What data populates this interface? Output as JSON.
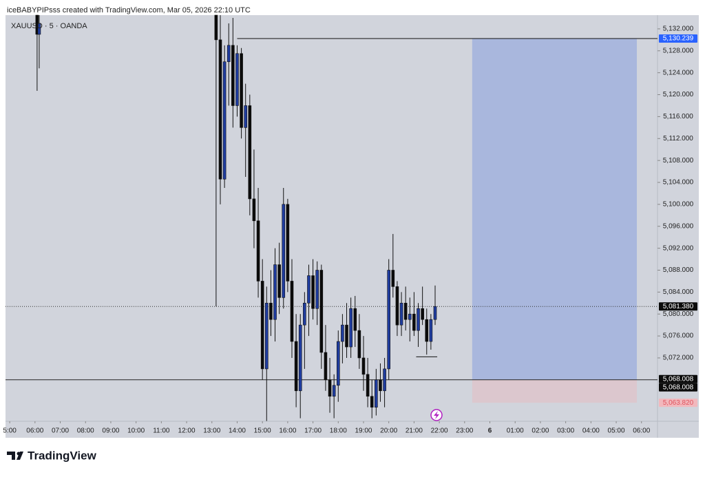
{
  "header": {
    "credit": "iceBABYPIPsss created with TradingView.com, Mar 05, 2026 22:10 UTC",
    "brand": "TradingView"
  },
  "chart_data": {
    "type": "candlestick",
    "title": "XAUUSD · 5 · OANDA",
    "x": [
      365,
      370,
      790,
      800,
      810,
      820,
      830,
      840,
      850,
      860,
      870,
      880,
      890,
      900,
      910,
      920,
      930,
      940,
      950,
      960,
      970,
      980,
      990,
      1000,
      1010,
      1020,
      1030,
      1040,
      1050,
      1060,
      1070,
      1080,
      1090,
      1100,
      1110,
      1120,
      1130,
      1140,
      1150,
      1160,
      1170,
      1180,
      1190,
      1200,
      1210,
      1220,
      1230,
      1240,
      1250,
      1260,
      1270,
      1280,
      1290,
      1300,
      1310
    ],
    "open": [
      5134.5,
      5131,
      5134.5,
      5130,
      5104.6,
      5126,
      5129,
      5118,
      5127.5,
      5114,
      5118,
      5101,
      5097,
      5086,
      5070,
      5082,
      5079,
      5089,
      5083,
      5100,
      5086,
      5075,
      5066,
      5078,
      5082,
      5087,
      5081,
      5088,
      5073,
      5068,
      5065,
      5067,
      5075,
      5078,
      5074,
      5081,
      5077,
      5072,
      5069,
      5065,
      5063,
      5068,
      5066,
      5070,
      5088,
      5085,
      5078,
      5082,
      5079,
      5080,
      5077,
      5081,
      5079,
      5075,
      5079
    ],
    "high": [
      5134.5,
      5134.5,
      5134.5,
      5134.5,
      5129,
      5133,
      5134,
      5129,
      5128.5,
      5122,
      5120,
      5110,
      5103,
      5090,
      5085,
      5088,
      5092,
      5093,
      5103,
      5101,
      5090,
      5080,
      5080,
      5084,
      5089,
      5090,
      5089.6,
      5089,
      5078,
      5072,
      5069,
      5077,
      5080,
      5082,
      5083,
      5083.3,
      5080,
      5076,
      5072,
      5068,
      5070,
      5071,
      5072,
      5090,
      5094.6,
      5086,
      5084,
      5085,
      5083,
      5084,
      5082,
      5085,
      5081,
      5080,
      5085.2
    ],
    "low": [
      5120.7,
      5124.8,
      5081.4,
      5100,
      5103,
      5118,
      5114,
      5116,
      5112,
      5105,
      5098,
      5092,
      5083,
      5068,
      5060.5,
      5076,
      5075,
      5080,
      5081,
      5084,
      5072,
      5063,
      5061,
      5070,
      5076,
      5079,
      5078,
      5070,
      5066,
      5062,
      5061,
      5064,
      5071,
      5072,
      5072,
      5074,
      5070,
      5066,
      5063,
      5061,
      5061.5,
      5064,
      5063,
      5068,
      5083,
      5076,
      5076,
      5077,
      5075,
      5076,
      5074,
      5078,
      5072.6,
      5073.5,
      5078
    ],
    "close": [
      5131,
      5133,
      5130,
      5104.6,
      5126,
      5129,
      5118,
      5127.5,
      5114,
      5118,
      5101,
      5097,
      5086,
      5070,
      5082,
      5079,
      5089,
      5083,
      5100,
      5086,
      5075,
      5066,
      5078,
      5082,
      5087,
      5081,
      5088,
      5073,
      5068,
      5065,
      5067,
      5075,
      5078,
      5074,
      5081,
      5077,
      5072,
      5069,
      5065,
      5063,
      5068,
      5066,
      5070,
      5088,
      5085,
      5078,
      5082,
      5079,
      5080,
      5077,
      5081,
      5079,
      5075,
      5079,
      5081.38
    ],
    "up_color": "#1f3c9e",
    "down_color": "#0b0b0b",
    "xlim": [
      290,
      1838
    ],
    "ylim": [
      5060.45,
      5134.5
    ],
    "xticks": [
      {
        "value": 300,
        "label": "5:00"
      },
      {
        "value": 360,
        "label": "06:00"
      },
      {
        "value": 420,
        "label": "07:00"
      },
      {
        "value": 480,
        "label": "08:00"
      },
      {
        "value": 540,
        "label": "09:00"
      },
      {
        "value": 600,
        "label": "10:00"
      },
      {
        "value": 660,
        "label": "11:00"
      },
      {
        "value": 720,
        "label": "12:00"
      },
      {
        "value": 780,
        "label": "13:00"
      },
      {
        "value": 840,
        "label": "14:00"
      },
      {
        "value": 900,
        "label": "15:00"
      },
      {
        "value": 960,
        "label": "16:00"
      },
      {
        "value": 1020,
        "label": "17:00"
      },
      {
        "value": 1080,
        "label": "18:00"
      },
      {
        "value": 1140,
        "label": "19:00"
      },
      {
        "value": 1200,
        "label": "20:00"
      },
      {
        "value": 1260,
        "label": "21:00"
      },
      {
        "value": 1320,
        "label": "22:00"
      },
      {
        "value": 1380,
        "label": "23:00"
      },
      {
        "value": 1440,
        "label": "6"
      },
      {
        "value": 1500,
        "label": "01:00"
      },
      {
        "value": 1560,
        "label": "02:00"
      },
      {
        "value": 1620,
        "label": "03:00"
      },
      {
        "value": 1680,
        "label": "04:00"
      },
      {
        "value": 1740,
        "label": "05:00"
      },
      {
        "value": 1800,
        "label": "06:00"
      }
    ],
    "yticks": [
      {
        "value": 5072,
        "label": "5,072.000"
      },
      {
        "value": 5076,
        "label": "5,076.000"
      },
      {
        "value": 5080,
        "label": "5,080.000"
      },
      {
        "value": 5084,
        "label": "5,084.000"
      },
      {
        "value": 5088,
        "label": "5,088.000"
      },
      {
        "value": 5092,
        "label": "5,092.000"
      },
      {
        "value": 5096,
        "label": "5,096.000"
      },
      {
        "value": 5100,
        "label": "5,100.000"
      },
      {
        "value": 5104,
        "label": "5,104.000"
      },
      {
        "value": 5108,
        "label": "5,108.000"
      },
      {
        "value": 5112,
        "label": "5,112.000"
      },
      {
        "value": 5116,
        "label": "5,116.000"
      },
      {
        "value": 5120,
        "label": "5,120.000"
      },
      {
        "value": 5124,
        "label": "5,124.000"
      },
      {
        "value": 5128,
        "label": "5,128.000"
      },
      {
        "value": 5132,
        "label": "5,132.000"
      }
    ],
    "target": {
      "value": 5130.239,
      "label": "5,130.239"
    },
    "entry": {
      "value": 5068.008,
      "label": "5,068.008"
    },
    "stop": {
      "value": 5063.82,
      "label": "5,063.820"
    },
    "last_price": {
      "value": 5081.38,
      "label": "5,081.380"
    },
    "target_line_start": 840,
    "position_x": [
      1398,
      1789
    ],
    "marker_line": {
      "y": 5072.2,
      "x": [
        1265,
        1315
      ]
    }
  }
}
